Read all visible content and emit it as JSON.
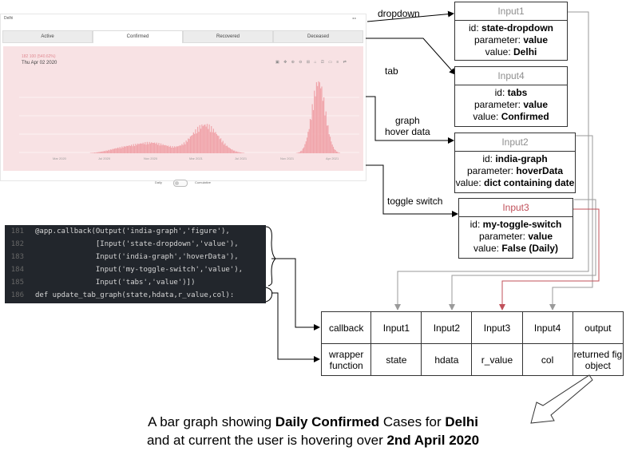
{
  "dashboard": {
    "title": "Delhi",
    "tabs": [
      "Active",
      "Confirmed",
      "Recovered",
      "Deceased"
    ],
    "active_tab": "Confirmed",
    "hover_value": "182 100 (540.62%)",
    "hover_date": "Thu Apr 02 2020",
    "x_ticks": [
      "Mar 2020",
      "Jul 2020",
      "Nov 2020",
      "Mar 2021",
      "Jul 2021",
      "Nov 2021",
      "Apr 2021"
    ],
    "toggle_left": "Daily",
    "toggle_right": "Cumulative",
    "bar_color": "#f0a4aa"
  },
  "arrows": {
    "dropdown": "dropdown",
    "tab": "tab",
    "graph_hover": [
      "graph",
      "hover data"
    ],
    "toggle": "toggle switch"
  },
  "inputs": [
    {
      "title": "Input1",
      "id": "state-dropdown",
      "parameter": "value",
      "value": "Delhi",
      "title_color": "#8f8f8f"
    },
    {
      "title": "Input4",
      "id": "tabs",
      "parameter": "value",
      "value": "Confirmed",
      "title_color": "#8f8f8f"
    },
    {
      "title": "Input2",
      "id": "india-graph",
      "parameter": "hoverData",
      "value": "dict containing date",
      "title_color": "#8f8f8f"
    },
    {
      "title": "Input3",
      "id": "my-toggle-switch",
      "parameter": "value",
      "value": "False (Daily)",
      "title_color": "#c0505a"
    }
  ],
  "labels": {
    "id": "id:",
    "parameter": "parameter:",
    "value": "value:"
  },
  "code": [
    {
      "ln": "181",
      "text": "@app.callback(Output('india-graph','figure'),"
    },
    {
      "ln": "182",
      "text": "              [Input('state-dropdown','value'),"
    },
    {
      "ln": "183",
      "text": "              Input('india-graph','hoverData'),"
    },
    {
      "ln": "184",
      "text": "              Input('my-toggle-switch','value'),"
    },
    {
      "ln": "185",
      "text": "              Input('tabs','value')])"
    },
    {
      "ln": "186",
      "text": "def update_tab_graph(state,hdata,r_value,col):"
    }
  ],
  "table": {
    "row1": [
      "callback",
      "Input1",
      "Input2",
      "Input3",
      "Input4",
      "output"
    ],
    "row2": [
      "wrapper function",
      "state",
      "hdata",
      "r_value",
      "col",
      "returned fig object"
    ]
  },
  "caption": {
    "line1": [
      "A bar graph showing ",
      "Daily Confirmed",
      " Cases for ",
      "Delhi"
    ],
    "line2": [
      "and at current the user is hovering over ",
      "2nd April 2020"
    ]
  }
}
